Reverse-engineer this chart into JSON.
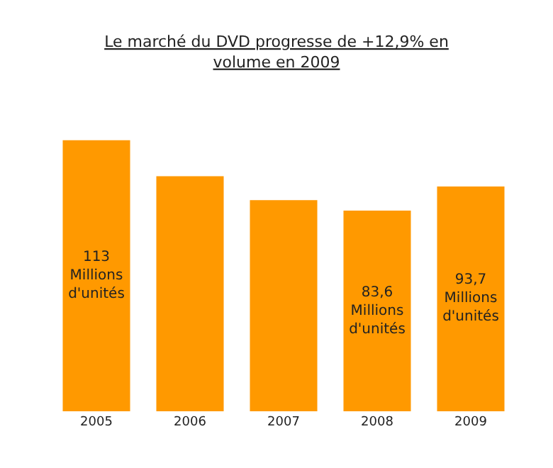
{
  "chart_data": {
    "type": "bar",
    "title": "Le marché du DVD progresse de +12,9% en\nvolume en 2009",
    "categories": [
      "2005",
      "2006",
      "2007",
      "2008",
      "2009"
    ],
    "values": [
      113,
      98,
      88,
      83.6,
      93.7
    ],
    "value_labels": [
      "113\nMillions\nd'unités",
      null,
      null,
      "83,6\nMillions\nd'unités",
      "93,7\nMillions\nd'unités"
    ],
    "color": "#ff9900",
    "legend": false,
    "tick_labels": "x"
  }
}
